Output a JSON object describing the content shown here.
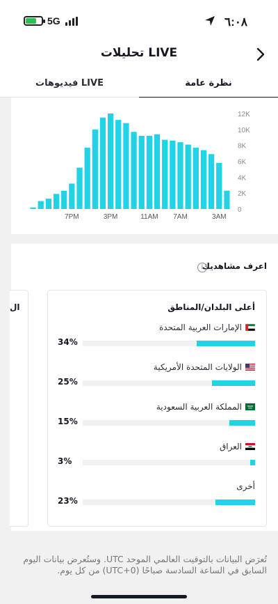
{
  "status_bar": {
    "time": "٦:٠٨",
    "network": "5G",
    "battery_level": 0.62
  },
  "header": {
    "title": "تحليلات LIVE",
    "back_icon": "chevron-right-icon"
  },
  "tabs": [
    {
      "label": "نظرة عامة",
      "active": true
    },
    {
      "label": "فيديوهات LIVE",
      "active": false
    }
  ],
  "chart_data": {
    "type": "bar",
    "color": "#21d3e4",
    "y_axis_position": "right",
    "yticks": [
      "12K",
      "10K",
      "8K",
      "6K",
      "4K",
      "2K",
      "0"
    ],
    "ylim": [
      0,
      12000
    ],
    "xtick_labels": [
      "7PM",
      "3PM",
      "11AM",
      "7AM",
      "3AM"
    ],
    "values": [
      200,
      1000,
      1300,
      1900,
      2300,
      3200,
      5200,
      7700,
      10000,
      11500,
      12000,
      11200,
      10800,
      9700,
      9200,
      9200,
      9400,
      8700,
      8600,
      8400,
      8100,
      7700,
      7400,
      6900,
      5800,
      2300
    ]
  },
  "audience": {
    "title": "اعرف مشاهديك",
    "info_icon": "info-icon",
    "regions_title": "أعلى البلدان/المناطق",
    "regions": [
      {
        "name": "الإمارات العربية المتحدة",
        "flag": "uae-flag-icon",
        "percent": "34%",
        "share": 0.34
      },
      {
        "name": "الولايات المتحدة الأمريكية",
        "flag": "usa-flag-icon",
        "percent": "25%",
        "share": 0.25
      },
      {
        "name": "المملكة العربية السعودية",
        "flag": "saudi-flag-icon",
        "percent": "15%",
        "share": 0.15
      },
      {
        "name": "العراق",
        "flag": "iraq-flag-icon",
        "percent": "3%",
        "share": 0.03
      },
      {
        "name": "أخرى",
        "flag": "",
        "percent": "23%",
        "share": 0.23
      }
    ],
    "next_panel_peek": "ال"
  },
  "footnote": "تُعرَض البيانات بالتوقيت العالمي الموحد UTC. وستُعرض بيانات اليوم السابق في الساعة السادسة صباحًا (UTC+0) من كل يوم."
}
